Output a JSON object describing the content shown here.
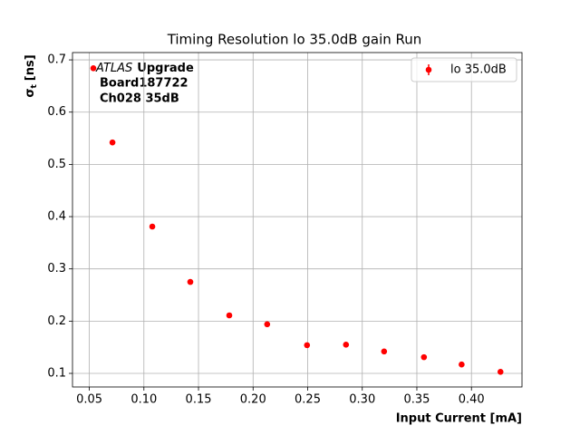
{
  "chart_data": {
    "type": "scatter",
    "title": "Timing Resolution lo 35.0dB gain Run",
    "xlabel": "Input Current [mA]",
    "ylabel": {
      "symbol": "σ",
      "subscript": "t",
      "unit": "[ns]"
    },
    "annotation": {
      "experiment": "ATLAS",
      "tag": "Upgrade",
      "board": "Board187722",
      "channel": "Ch028 35dB"
    },
    "series": [
      {
        "name": "lo 35.0dB",
        "color": "#ff0000",
        "x": [
          0.0537,
          0.0712,
          0.1077,
          0.1425,
          0.1782,
          0.2129,
          0.2494,
          0.2851,
          0.32,
          0.3565,
          0.391,
          0.4266
        ],
        "values": [
          0.684,
          0.542,
          0.381,
          0.275,
          0.211,
          0.194,
          0.154,
          0.155,
          0.142,
          0.131,
          0.117,
          0.103
        ]
      }
    ],
    "xlim": [
      0.0346,
      0.4463
    ],
    "ylim": [
      0.074,
      0.714
    ],
    "xticks": [
      {
        "value": 0.05,
        "label": "0.05"
      },
      {
        "value": 0.1,
        "label": "0.10"
      },
      {
        "value": 0.15,
        "label": "0.15"
      },
      {
        "value": 0.2,
        "label": "0.20"
      },
      {
        "value": 0.25,
        "label": "0.25"
      },
      {
        "value": 0.3,
        "label": "0.30"
      },
      {
        "value": 0.35,
        "label": "0.35"
      },
      {
        "value": 0.4,
        "label": "0.40"
      }
    ],
    "yticks": [
      0.1,
      0.2,
      0.3,
      0.4,
      0.5,
      0.6,
      0.7
    ],
    "grid": true,
    "legend": "upper right"
  }
}
